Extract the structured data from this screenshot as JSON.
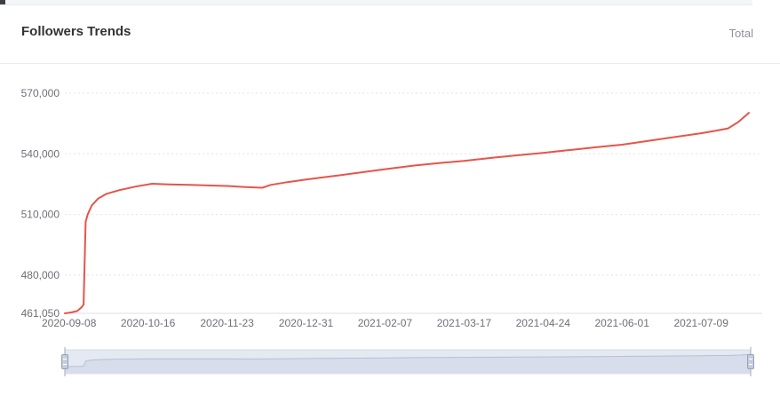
{
  "header": {
    "title": "Followers Trends",
    "legend_total": "Total"
  },
  "chart_data": {
    "type": "line",
    "title": "Followers Trends",
    "legend": [
      "Total"
    ],
    "legend_position": "top-right",
    "grid": "horizontal-dotted",
    "xlabel": "",
    "ylabel": "",
    "ylim": [
      461050,
      570000
    ],
    "ytick_values": [
      461050,
      480000,
      510000,
      540000,
      570000
    ],
    "ytick_labels": [
      "461,050",
      "480,000",
      "510,000",
      "540,000",
      "570,000"
    ],
    "xtick_labels": [
      "2020-09-08",
      "2020-10-16",
      "2020-11-23",
      "2020-12-31",
      "2021-02-07",
      "2021-03-17",
      "2021-04-24",
      "2021-06-01",
      "2021-07-09"
    ],
    "series": [
      {
        "name": "Total",
        "color": "#e75449",
        "x": [
          "2020-09-06",
          "2020-09-09",
          "2020-09-12",
          "2020-09-14",
          "2020-09-15",
          "2020-09-16",
          "2020-09-17",
          "2020-09-19",
          "2020-09-22",
          "2020-09-26",
          "2020-10-02",
          "2020-10-10",
          "2020-10-18",
          "2020-10-26",
          "2020-11-05",
          "2020-11-15",
          "2020-11-23",
          "2020-12-01",
          "2020-12-06",
          "2020-12-10",
          "2020-12-14",
          "2020-12-22",
          "2020-12-31",
          "2021-01-10",
          "2021-01-20",
          "2021-02-07",
          "2021-02-21",
          "2021-03-07",
          "2021-03-17",
          "2021-04-01",
          "2021-04-12",
          "2021-04-24",
          "2021-05-08",
          "2021-05-20",
          "2021-06-01",
          "2021-06-12",
          "2021-06-24",
          "2021-07-09",
          "2021-07-17",
          "2021-07-22",
          "2021-07-27",
          "2021-08-01"
        ],
        "values": [
          461050,
          461500,
          462200,
          464000,
          465400,
          506300,
          510000,
          514500,
          517800,
          520200,
          522000,
          523800,
          525200,
          524900,
          524600,
          524300,
          524100,
          523600,
          523400,
          523200,
          524600,
          526000,
          527300,
          528600,
          529900,
          532400,
          534200,
          535600,
          536500,
          538200,
          539300,
          540500,
          542000,
          543300,
          544500,
          546200,
          548000,
          550200,
          551600,
          552600,
          555800,
          560300
        ]
      }
    ],
    "datazoom": {
      "range_start_pct": 0,
      "range_end_pct": 100
    }
  },
  "colors": {
    "line": "#e75449",
    "axis_text": "#6e7079",
    "grid_line": "#e2e4ea"
  }
}
